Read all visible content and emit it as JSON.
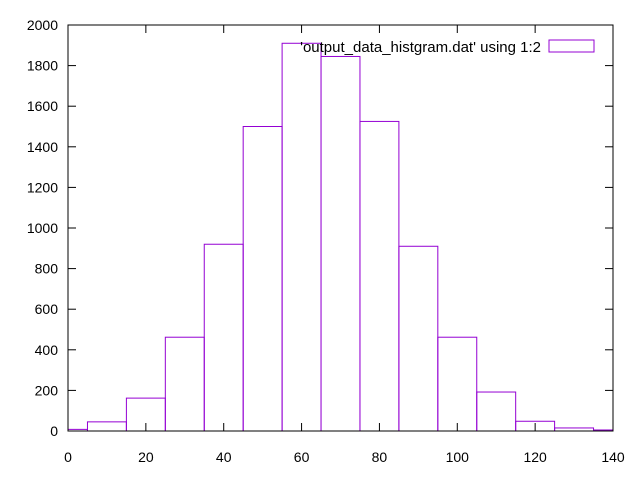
{
  "chart_data": {
    "type": "bar",
    "style": "histogram-outline",
    "x": [
      0,
      10,
      20,
      30,
      40,
      50,
      60,
      70,
      80,
      90,
      100,
      110,
      120,
      130,
      140
    ],
    "values": [
      8,
      45,
      162,
      462,
      920,
      1500,
      1910,
      1845,
      1525,
      910,
      462,
      192,
      48,
      15,
      5
    ],
    "bin_width": 10,
    "xlim": [
      0,
      140
    ],
    "ylim": [
      0,
      2000
    ],
    "xticks": [
      0,
      20,
      40,
      60,
      80,
      100,
      120,
      140
    ],
    "yticks": [
      0,
      200,
      400,
      600,
      800,
      1000,
      1200,
      1400,
      1600,
      1800,
      2000
    ],
    "legend": {
      "label": "'output_data_histgram.dat' using 1:2",
      "position": "top-right"
    },
    "grid": false,
    "color": "#9400d3"
  }
}
